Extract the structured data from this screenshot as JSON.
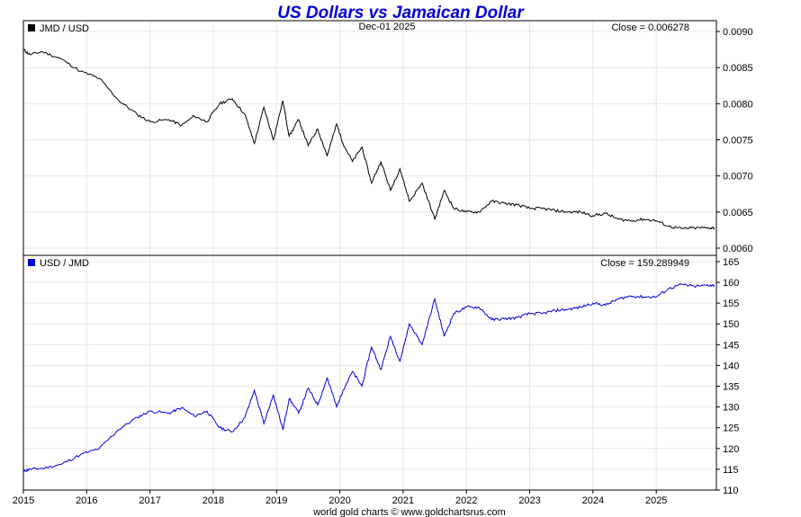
{
  "chart_data": [
    {
      "type": "line",
      "title": "US Dollars vs Jamaican Dollar",
      "legend": "JMD / USD",
      "date_label": "Dec-01  2025",
      "close_label": "Close = 0.006278",
      "color": "#000000",
      "ylim": [
        0.0059,
        0.00915
      ],
      "y_ticks": [
        "0.0090",
        "0.0085",
        "0.0080",
        "0.0075",
        "0.0070",
        "0.0065",
        "0.0060"
      ],
      "x": [
        2015.0,
        2015.1,
        2015.3,
        2015.6,
        2015.9,
        2016.2,
        2016.5,
        2016.8,
        2017.0,
        2017.3,
        2017.5,
        2017.7,
        2017.9,
        2018.1,
        2018.3,
        2018.5,
        2018.65,
        2018.8,
        2018.95,
        2019.1,
        2019.2,
        2019.35,
        2019.5,
        2019.65,
        2019.8,
        2019.95,
        2020.05,
        2020.2,
        2020.35,
        2020.5,
        2020.65,
        2020.8,
        2020.95,
        2021.1,
        2021.3,
        2021.5,
        2021.65,
        2021.8,
        2022.0,
        2022.2,
        2022.4,
        2022.6,
        2022.8,
        2023.0,
        2023.2,
        2023.4,
        2023.6,
        2023.8,
        2024.0,
        2024.2,
        2024.4,
        2024.6,
        2024.8,
        2025.0,
        2025.2,
        2025.4,
        2025.6,
        2025.8,
        2025.92
      ],
      "values": [
        0.00875,
        0.00868,
        0.00872,
        0.00862,
        0.00845,
        0.00835,
        0.00805,
        0.00785,
        0.00775,
        0.00778,
        0.0077,
        0.00783,
        0.00775,
        0.008,
        0.00807,
        0.00785,
        0.00745,
        0.00795,
        0.0075,
        0.00804,
        0.00755,
        0.00778,
        0.00742,
        0.00765,
        0.00728,
        0.00772,
        0.00745,
        0.0072,
        0.0074,
        0.0069,
        0.0072,
        0.0068,
        0.0071,
        0.00665,
        0.0069,
        0.0064,
        0.0068,
        0.00655,
        0.0065,
        0.0065,
        0.00665,
        0.00662,
        0.0066,
        0.00655,
        0.00655,
        0.00652,
        0.0065,
        0.0065,
        0.00645,
        0.00648,
        0.0064,
        0.00638,
        0.0064,
        0.00638,
        0.0063,
        0.00627,
        0.00628,
        0.00628,
        0.00628
      ]
    },
    {
      "type": "line",
      "legend": "USD / JMD",
      "close_label": "Close = 159.289949",
      "color": "#0000dd",
      "ylim": [
        110,
        166.5
      ],
      "y_ticks": [
        "165",
        "160",
        "155",
        "150",
        "145",
        "140",
        "135",
        "130",
        "125",
        "120",
        "115",
        "110"
      ],
      "x": [
        2015.0,
        2015.1,
        2015.3,
        2015.6,
        2015.9,
        2016.2,
        2016.5,
        2016.8,
        2017.0,
        2017.3,
        2017.5,
        2017.7,
        2017.9,
        2018.1,
        2018.3,
        2018.5,
        2018.65,
        2018.8,
        2018.95,
        2019.1,
        2019.2,
        2019.35,
        2019.5,
        2019.65,
        2019.8,
        2019.95,
        2020.05,
        2020.2,
        2020.35,
        2020.5,
        2020.65,
        2020.8,
        2020.95,
        2021.1,
        2021.3,
        2021.5,
        2021.65,
        2021.8,
        2022.0,
        2022.2,
        2022.4,
        2022.6,
        2022.8,
        2023.0,
        2023.2,
        2023.4,
        2023.6,
        2023.8,
        2024.0,
        2024.2,
        2024.4,
        2024.6,
        2024.8,
        2025.0,
        2025.2,
        2025.4,
        2025.6,
        2025.8,
        2025.92
      ],
      "values": [
        114.5,
        115.0,
        115.2,
        116.2,
        118.5,
        120.0,
        124.5,
        127.5,
        129.0,
        128.5,
        129.8,
        127.8,
        129.0,
        125.0,
        124.0,
        127.5,
        134.0,
        126.0,
        133.0,
        124.5,
        132.0,
        128.5,
        134.5,
        130.5,
        137.0,
        130.0,
        134.0,
        138.5,
        135.0,
        144.5,
        139.0,
        147.0,
        141.0,
        150.0,
        145.0,
        156.0,
        147.0,
        152.5,
        154.0,
        154.0,
        151.0,
        151.2,
        151.5,
        152.5,
        152.5,
        153.2,
        153.5,
        154.0,
        155.0,
        154.5,
        156.0,
        156.7,
        156.5,
        156.5,
        158.5,
        159.5,
        159.0,
        159.3,
        159.29
      ]
    }
  ],
  "x_ticks": [
    "2015",
    "2016",
    "2017",
    "2018",
    "2019",
    "2020",
    "2021",
    "2022",
    "2023",
    "2024",
    "2025"
  ],
  "footer": "world gold charts © www.goldchartsrus.com"
}
